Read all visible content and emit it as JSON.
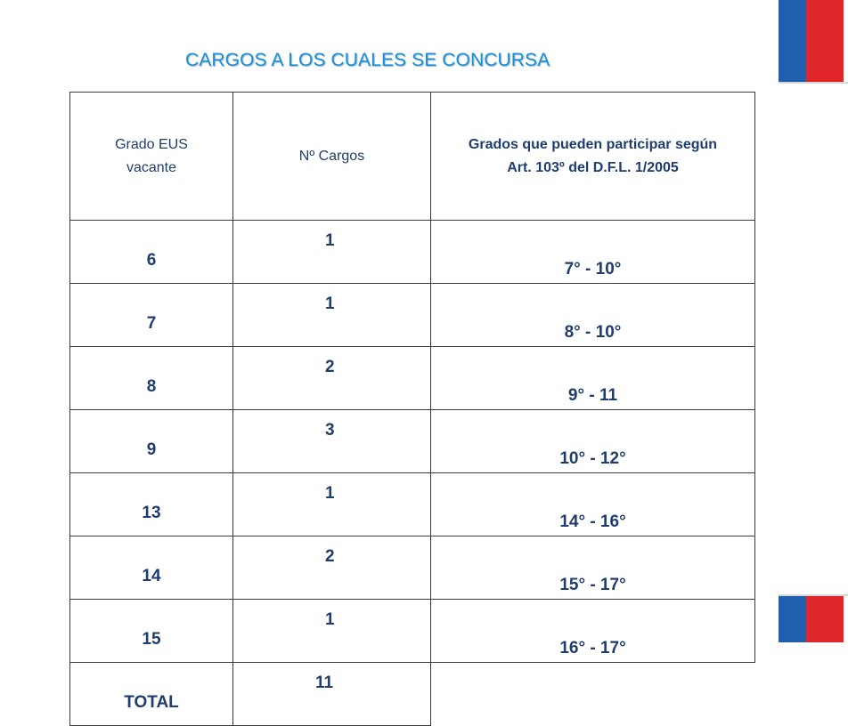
{
  "title": "CARGOS A LOS CUALES SE CONCURSA",
  "headers": {
    "col1": [
      "Grado EUS",
      "vacante"
    ],
    "col2": "Nº Cargos",
    "col3": [
      "Grados que pueden participar según",
      "Art. 103º del D.F.L. 1/2005"
    ]
  },
  "rows": [
    {
      "grado": "6",
      "cargos": "1",
      "participan": "7° - 10°"
    },
    {
      "grado": "7",
      "cargos": "1",
      "participan": "8° - 10°"
    },
    {
      "grado": "8",
      "cargos": "2",
      "participan": "9° - 11"
    },
    {
      "grado": "9",
      "cargos": "3",
      "participan": "10° - 12°"
    },
    {
      "grado": "13",
      "cargos": "1",
      "participan": "14° - 16°"
    },
    {
      "grado": "14",
      "cargos": "2",
      "participan": "15° - 17°"
    },
    {
      "grado": "15",
      "cargos": "1",
      "participan": "16° - 17°"
    }
  ],
  "total": {
    "label": "TOTAL",
    "cargos": "11"
  },
  "colors": {
    "title": "#1e8fd5",
    "text": "#1f3d6e",
    "flag_blue": "#1f5fae",
    "flag_red": "#e0262a"
  }
}
